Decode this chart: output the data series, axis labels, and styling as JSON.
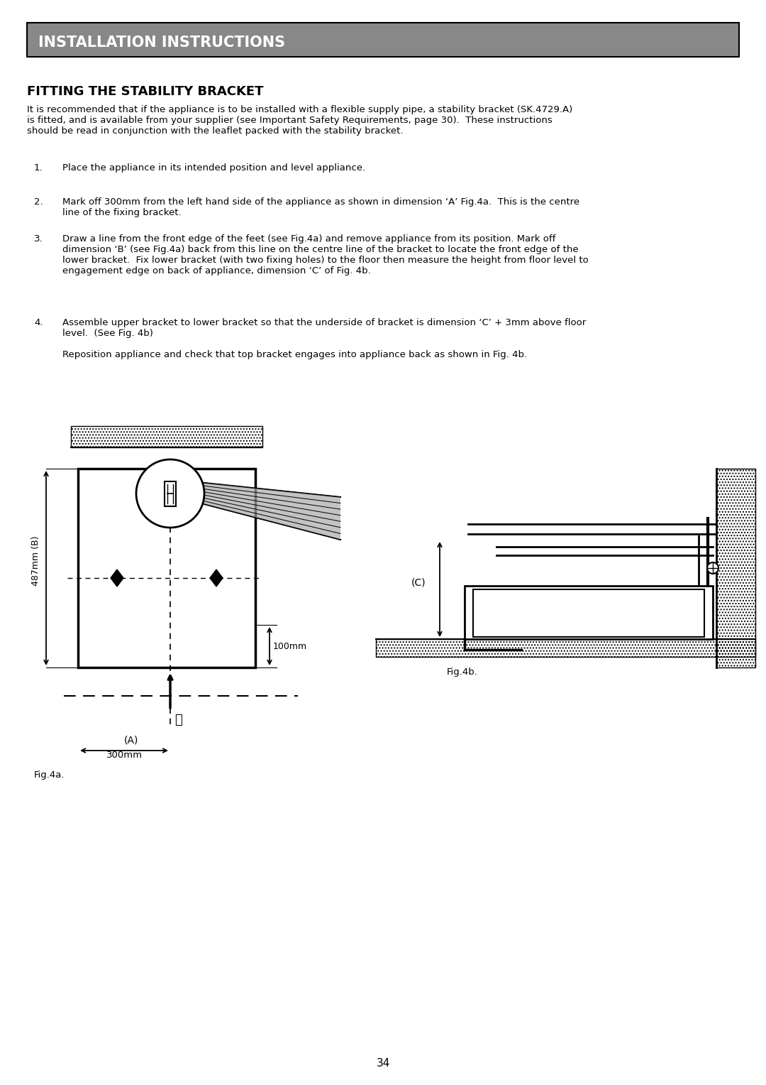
{
  "page_title": "INSTALLATION INSTRUCTIONS",
  "section_title": "FITTING THE STABILITY BRACKET",
  "intro_text": "It is recommended that if the appliance is to be installed with a flexible supply pipe, a stability bracket (SK.4729.A)\nis fitted, and is available from your supplier (see Important Safety Requirements, page 30).  These instructions\nshould be read in conjunction with the leaflet packed with the stability bracket.",
  "steps": [
    "Place the appliance in its intended position and level appliance.",
    "Mark off 300mm from the left hand side of the appliance as shown in dimension ‘A’ Fig.4a.  This is the centre\nline of the fixing bracket.",
    "Draw a line from the front edge of the feet (see Fig.4a) and remove appliance from its position. Mark off\ndimension ‘B’ (see Fig.4a) back from this line on the centre line of the bracket to locate the front edge of the\nlower bracket.  Fix lower bracket (with two fixing holes) to the floor then measure the height from floor level to\nengagement edge on back of appliance, dimension ‘C’ of Fig. 4b.",
    "Assemble upper bracket to lower bracket so that the underside of bracket is dimension ‘C’ + 3mm above floor\nlevel.  (See Fig. 4b)\n\nReposition appliance and check that top bracket engages into appliance back as shown in Fig. 4b."
  ],
  "fig4a_label": "Fig.4a.",
  "fig4b_label": "Fig.4b.",
  "page_number": "34",
  "header_bg": "#888888",
  "header_text_color": "#ffffff",
  "body_bg": "#ffffff",
  "body_text_color": "#000000"
}
